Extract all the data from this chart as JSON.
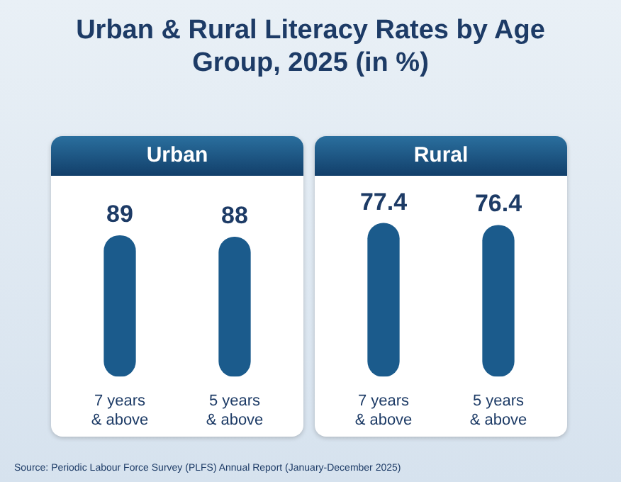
{
  "chart_data": [
    {
      "type": "other",
      "title": "Urban & Rural Literacy Rates by Age Group, 2025 (in %)",
      "annotations": [
        "Source: Periodic Labour Force Survey (PLFS) Annual Report (January-December 2025)"
      ]
    },
    {
      "type": "bar",
      "title": "Urban",
      "categories": [
        "7 years & above",
        "5 years & above"
      ],
      "values": [
        89,
        88
      ],
      "color": "#1b5b8c",
      "data_labels": true,
      "legend": false,
      "tick_labels": "x"
    },
    {
      "type": "bar",
      "title": "Rural",
      "categories": [
        "7 years & above",
        "5 years & above"
      ],
      "values": [
        77.4,
        76.4
      ],
      "color": "#1b5b8c",
      "data_labels": true,
      "legend": false,
      "tick_labels": "x"
    }
  ]
}
